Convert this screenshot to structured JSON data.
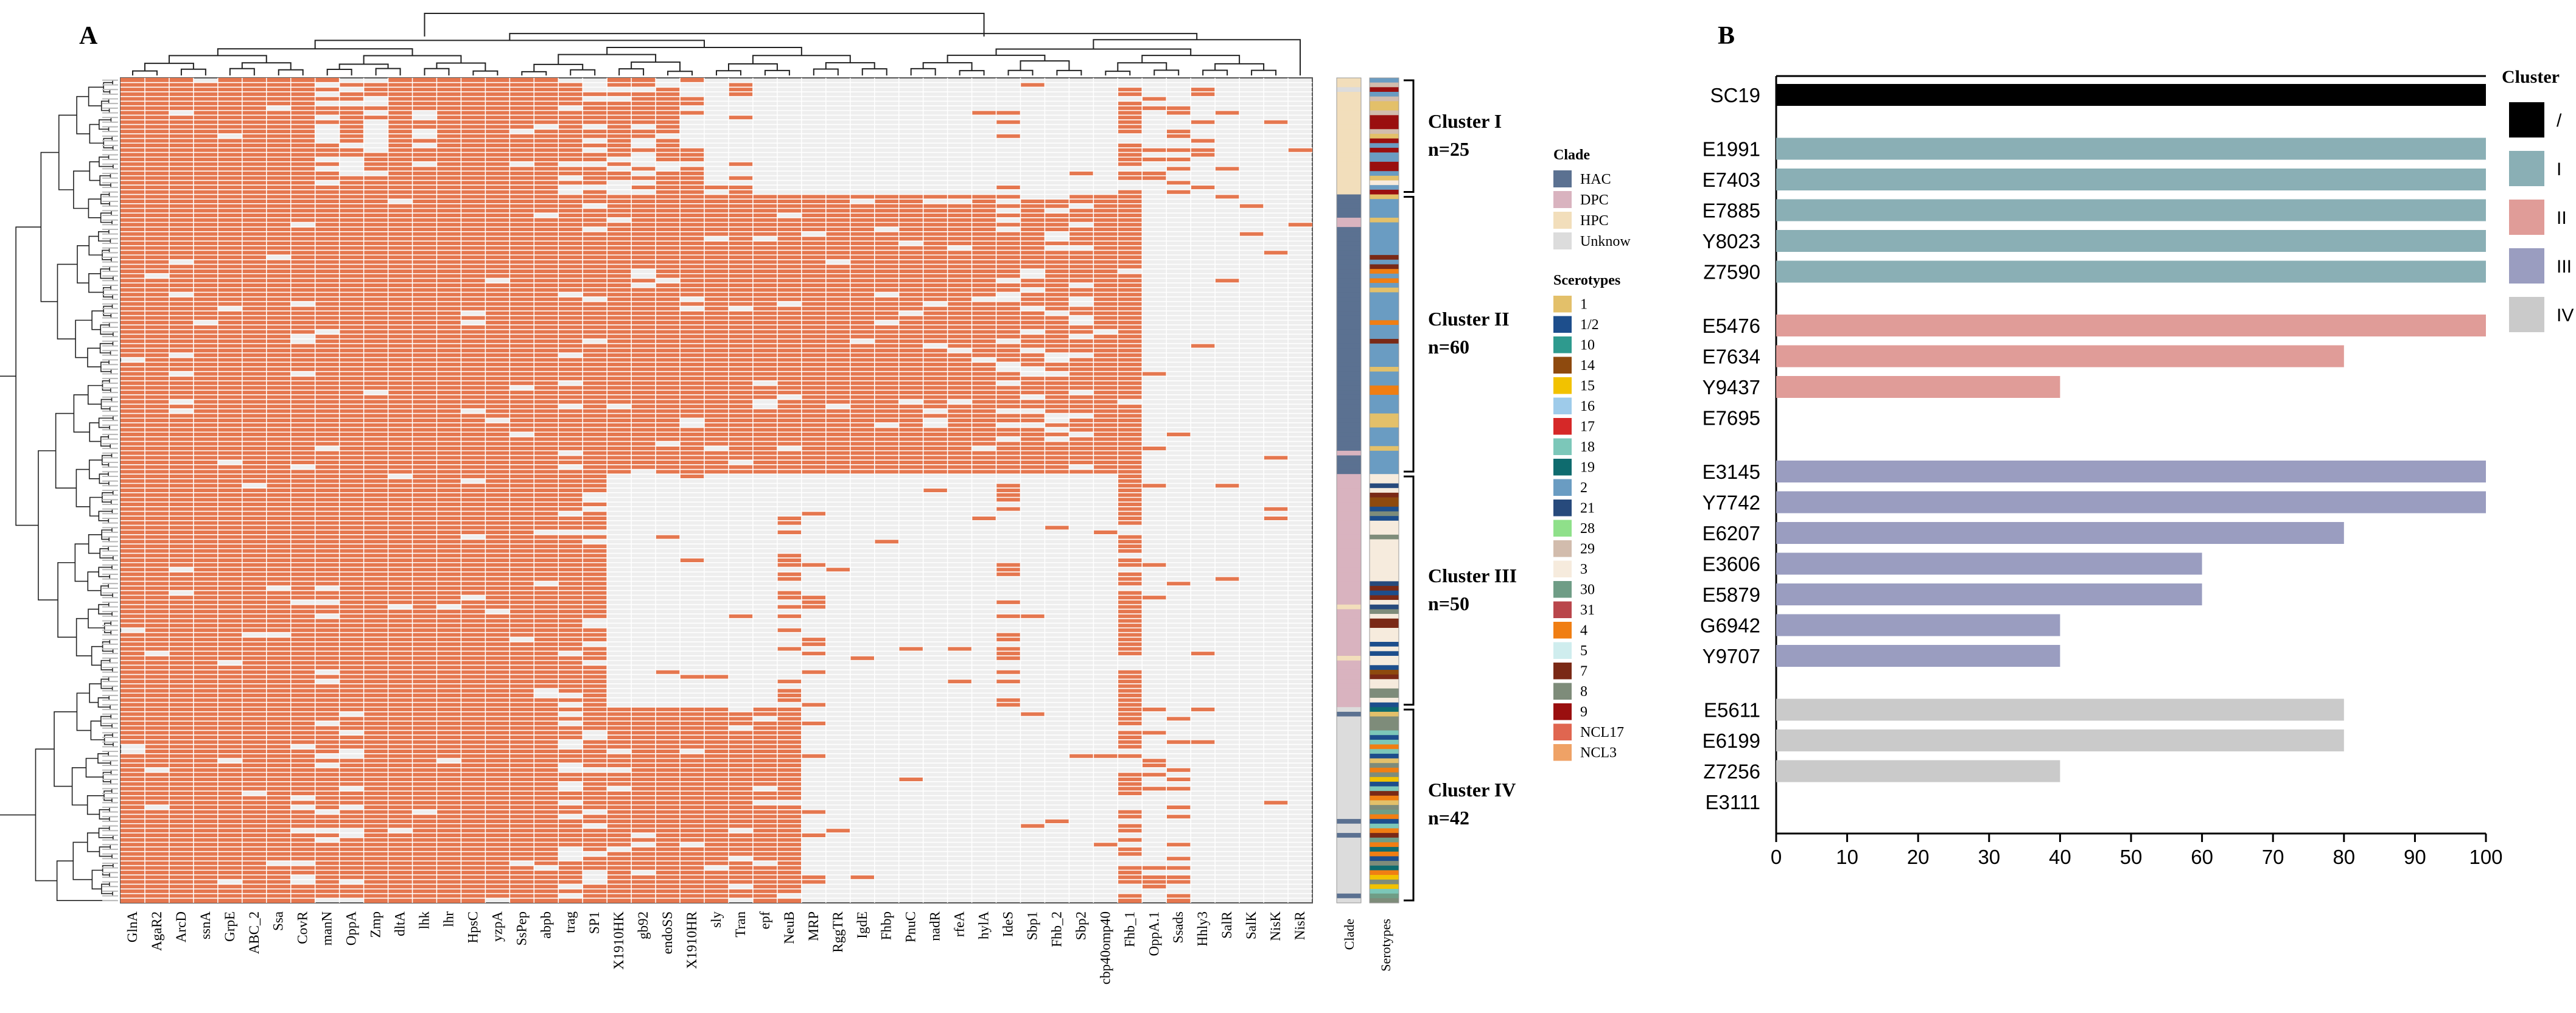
{
  "panel_a": {
    "label": "A",
    "genes": [
      "GlnA",
      "AgaR2",
      "ArcD",
      "ssnA",
      "GrpE",
      "ABC_2",
      "Ssa",
      "CovR",
      "manN",
      "OppA",
      "Zmp",
      "dltA",
      "lhk",
      "lhr",
      "HpsC",
      "yzpA",
      "SsPep",
      "abpb",
      "trag",
      "SP1",
      "X1910HK",
      "gb92",
      "endoSS",
      "X1910HR",
      "sly",
      "Tran",
      "epf",
      "NeuB",
      "MRP",
      "RggTR",
      "IgdE",
      "Fhbp",
      "PnuC",
      "nadR",
      "rfeA",
      "hylA",
      "IdeS",
      "Sbp1",
      "Fhb_2",
      "Sbp2",
      "cbp40omp40",
      "Fhb_1",
      "OppA.1",
      "Ssads",
      "Hhly3",
      "SalR",
      "SalK",
      "NisK",
      "NisR"
    ],
    "side_axis_labels": [
      "Clade",
      "Serotypes"
    ],
    "clusters": [
      {
        "name": "Cluster I",
        "n": "n=25"
      },
      {
        "name": "Cluster II",
        "n": "n=60"
      },
      {
        "name": "Cluster III",
        "n": "n=50"
      },
      {
        "name": "Cluster IV",
        "n": "n=42"
      }
    ],
    "legend_clade": {
      "title": "Clade",
      "items": [
        {
          "label": "HAC",
          "color": "#5B7191"
        },
        {
          "label": "DPC",
          "color": "#D9B3BF"
        },
        {
          "label": "HPC",
          "color": "#F2DEBB"
        },
        {
          "label": "Unknow",
          "color": "#DCDCDC"
        }
      ]
    },
    "legend_serotypes": {
      "title": "Scerotypes",
      "items": [
        {
          "label": "1",
          "color": "#E3C06A"
        },
        {
          "label": "1/2",
          "color": "#1D4E8C"
        },
        {
          "label": "10",
          "color": "#2E9A8E"
        },
        {
          "label": "14",
          "color": "#8E4A0E"
        },
        {
          "label": "15",
          "color": "#F2C200"
        },
        {
          "label": "16",
          "color": "#9ECBEA"
        },
        {
          "label": "17",
          "color": "#D62828"
        },
        {
          "label": "18",
          "color": "#7CC7B9"
        },
        {
          "label": "19",
          "color": "#0E6B6E"
        },
        {
          "label": "2",
          "color": "#6A9CC2"
        },
        {
          "label": "21",
          "color": "#274A7C"
        },
        {
          "label": "28",
          "color": "#8FE08A"
        },
        {
          "label": "29",
          "color": "#D2BCAD"
        },
        {
          "label": "3",
          "color": "#F6EBDD"
        },
        {
          "label": "30",
          "color": "#6F9D86"
        },
        {
          "label": "31",
          "color": "#B9464B"
        },
        {
          "label": "4",
          "color": "#F07E13"
        },
        {
          "label": "5",
          "color": "#CFEDEE"
        },
        {
          "label": "7",
          "color": "#7A2916"
        },
        {
          "label": "8",
          "color": "#7E8C7A"
        },
        {
          "label": "9",
          "color": "#9A0F0F"
        },
        {
          "label": "NCL17",
          "color": "#E06650"
        },
        {
          "label": "NCL3",
          "color": "#EFA266"
        }
      ]
    }
  },
  "chart_data": [
    {
      "type": "heatmap",
      "title": "",
      "description_values": "gene presence (1) / absence (0) per strain; rows grouped into clusters",
      "x": [
        "GlnA",
        "AgaR2",
        "ArcD",
        "ssnA",
        "GrpE",
        "ABC_2",
        "Ssa",
        "CovR",
        "manN",
        "OppA",
        "Zmp",
        "dltA",
        "lhk",
        "lhr",
        "HpsC",
        "yzpA",
        "SsPep",
        "abpb",
        "trag",
        "SP1",
        "X1910HK",
        "gb92",
        "endoSS",
        "X1910HR",
        "sly",
        "Tran",
        "epf",
        "NeuB",
        "MRP",
        "RggTR",
        "IgdE",
        "Fhbp",
        "PnuC",
        "nadR",
        "rfeA",
        "hylA",
        "IdeS",
        "Sbp1",
        "Fhb_2",
        "Sbp2",
        "cbp40omp40",
        "Fhb_1",
        "OppA.1",
        "Ssads",
        "Hhly3",
        "SalR",
        "SalK",
        "NisK",
        "NisR"
      ],
      "row_groups": [
        {
          "cluster": "Cluster I",
          "rows": 25
        },
        {
          "cluster": "Cluster II",
          "rows": 60
        },
        {
          "cluster": "Cluster III",
          "rows": 50
        },
        {
          "cluster": "Cluster IV",
          "rows": 42
        }
      ],
      "colors": {
        "present": "#E5774F",
        "absent": "#EEEEEE"
      }
    },
    {
      "type": "bar",
      "orientation": "horizontal",
      "panel_label": "B",
      "categories": [
        "SC19",
        "E1991",
        "E7403",
        "E7885",
        "Y8023",
        "Z7590",
        "E5476",
        "E7634",
        "Y9437",
        "E7695",
        "E3145",
        "Y7742",
        "E6207",
        "E3606",
        "E5879",
        "G6942",
        "Y9707",
        "E5611",
        "E6199",
        "Z7256",
        "E3111"
      ],
      "values": [
        100,
        100,
        100,
        100,
        100,
        100,
        100,
        80,
        40,
        0,
        100,
        100,
        80,
        60,
        60,
        40,
        40,
        80,
        80,
        40,
        0
      ],
      "groups": [
        "/",
        "I",
        "I",
        "I",
        "I",
        "I",
        "II",
        "II",
        "II",
        "II",
        "III",
        "III",
        "III",
        "III",
        "III",
        "III",
        "III",
        "IV",
        "IV",
        "IV",
        "IV"
      ],
      "xlim": [
        0,
        100
      ],
      "xticks": [
        0,
        10,
        20,
        30,
        40,
        50,
        60,
        70,
        80,
        90,
        100
      ],
      "legend": {
        "title": "Cluster",
        "items": [
          {
            "label": "/",
            "color": "#000000"
          },
          {
            "label": "I",
            "color": "#8AAFB5"
          },
          {
            "label": "II",
            "color": "#E09C98"
          },
          {
            "label": "III",
            "color": "#9A9DC0"
          },
          {
            "label": "IV",
            "color": "#CACACA"
          }
        ]
      }
    }
  ]
}
